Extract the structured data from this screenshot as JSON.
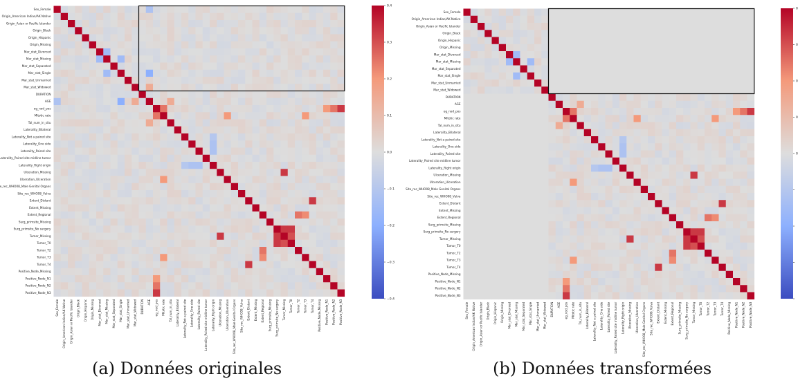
{
  "chart_data": [
    {
      "type": "heatmap",
      "variant": "original",
      "caption": "(a) Données originales",
      "variables": [
        "Sex_Female",
        "Origin_American Indian/AK Native",
        "Origin_Asian or Pacific Islander",
        "Origin_Black",
        "Origin_Hispanic",
        "Origin_Missing",
        "Mar_stat_Divorced",
        "Mar_stat_Missing",
        "Mar_stat_Separated",
        "Mar_stat_Single",
        "Mar_stat_Unmarried",
        "Mar_stat_Widowed",
        "DURATION",
        "AGE",
        "eg_nod_pos",
        "Mitotic rate",
        "Tal_num_in_situ",
        "Laterality_Bilateral",
        "Laterality_Not a paired site",
        "Laterality_One side",
        "Laterality_Paired site",
        "Laterality_Paired site midline tumor",
        "Laterality_Right origin",
        "Ulceration_Missing",
        "Ulceration_Ulceration",
        "Site_rec_WHO08_Male Genital Organs",
        "Site_rec_WHO08_Vulva",
        "Extent_Distant",
        "Extent_Missing",
        "Extent_Regional",
        "Surg_primsite_Missing",
        "Surg_primsite_No surgery",
        "Tumor_Missing",
        "Tumor_T0",
        "Tumor_T2",
        "Tumor_T3",
        "Tumor_T4",
        "Positive_Node_Missing",
        "Positive_Node_N1",
        "Positive_Node_N2",
        "Positive_Node_N3"
      ],
      "notable_correlations": [
        {
          "a": "Mar_stat_Missing",
          "b": "Mar_stat_Divorced",
          "r": -0.15
        },
        {
          "a": "Mar_stat_Single",
          "b": "Mar_stat_Missing",
          "r": -0.15
        },
        {
          "a": "Mar_stat_Single",
          "b": "AGE",
          "r": -0.2
        },
        {
          "a": "AGE",
          "b": "Sex_Female",
          "r": -0.12
        },
        {
          "a": "AGE",
          "b": "Mar_stat_Widowed",
          "r": 0.15
        },
        {
          "a": "Mitotic rate",
          "b": "eg_nod_pos",
          "r": 0.25
        },
        {
          "a": "Tal_num_in_situ",
          "b": "AGE",
          "r": 0.15
        },
        {
          "a": "Laterality_Right origin",
          "b": "Laterality_One side",
          "r": -0.12
        },
        {
          "a": "Laterality_Right origin",
          "b": "Laterality_Paired site",
          "r": -0.12
        },
        {
          "a": "Laterality_Right origin",
          "b": "Laterality_Not a paired site",
          "r": -0.1
        },
        {
          "a": "Tumor_Missing",
          "b": "Ulceration_Missing",
          "r": 0.33
        },
        {
          "a": "Tumor_Missing",
          "b": "Surg_primsite_No surgery",
          "r": 0.33
        },
        {
          "a": "Tumor_T0",
          "b": "Surg_primsite_No surgery",
          "r": 0.33
        },
        {
          "a": "Tumor_T0",
          "b": "Tumor_Missing",
          "r": 0.3
        },
        {
          "a": "Tumor_T4",
          "b": "Extent_Distant",
          "r": 0.33
        },
        {
          "a": "Positive_Node_N3",
          "b": "eg_nod_pos",
          "r": 0.33
        },
        {
          "a": "Positive_Node_N2",
          "b": "eg_nod_pos",
          "r": 0.25
        },
        {
          "a": "Positive_Node_N1",
          "b": "eg_nod_pos",
          "r": 0.2
        },
        {
          "a": "Ulceration_Ulceration",
          "b": "Mitotic rate",
          "r": 0.2
        },
        {
          "a": "Extent_Regional",
          "b": "Tumor_T3",
          "r": 0.22
        },
        {
          "a": "Tumor_T3",
          "b": "Mitotic rate",
          "r": 0.2
        },
        {
          "a": "Tumor_T2",
          "b": "Extent_Regional",
          "r": 0.25
        }
      ],
      "colorbar": {
        "min": -0.4,
        "max": 0.4,
        "ticks": [
          -0.4,
          -0.3,
          -0.2,
          -0.1,
          0.0,
          0.1,
          0.2,
          0.3,
          0.4
        ]
      },
      "highlight_box": "rows 0-11 × columns 12-40"
    },
    {
      "type": "heatmap",
      "variant": "transformed",
      "caption": "(b) Données transformées",
      "variables": [
        "Sex_Female",
        "Origin_American Indian/AK Native",
        "Origin_Asian or Pacific Islander",
        "Origin_Black",
        "Origin_Hispanic",
        "Origin_Missing",
        "Mar_stat_Divorced",
        "Mar_stat_Missing",
        "Mar_stat_Separated",
        "Mar_stat_Single",
        "Mar_stat_Unmarried",
        "Mar_stat_Widowed",
        "DURATION",
        "AGE",
        "eg_nod_pos",
        "Mitotic rate",
        "Tal_num_in_situ",
        "Laterality_Bilateral",
        "Laterality_Not a paired site",
        "Laterality_One side",
        "Laterality_Paired site",
        "Laterality_Paired site midline tumor",
        "Laterality_Right origin",
        "Ulceration_Missing",
        "Ulceration_Ulceration",
        "Site_rec_WHO08_Male Genital Organs",
        "Site_rec_WHO08_Vulva",
        "Extent_Distant",
        "Extent_Missing",
        "Extent_Regional",
        "Surg_primsite_Missing",
        "Surg_primsite_No surgery",
        "Tumor_Missing",
        "Tumor_T0",
        "Tumor_T2",
        "Tumor_T3",
        "Tumor_T4",
        "Positive_Node_Missing",
        "Positive_Node_N1",
        "Positive_Node_N2",
        "Positive_Node_N3"
      ],
      "notable_correlations": "same as (a) outside the highlighted block; highlighted block rows 0-11 × columns 12-40 ≈ 0.0",
      "colorbar": {
        "min": -0.4,
        "max": 0.4,
        "ticks": [
          "0.4",
          "0.3",
          "0.2",
          "0.1",
          "0",
          "",
          "",
          "",
          ""
        ]
      },
      "highlight_box": "rows 0-11 × columns 12-40"
    }
  ]
}
